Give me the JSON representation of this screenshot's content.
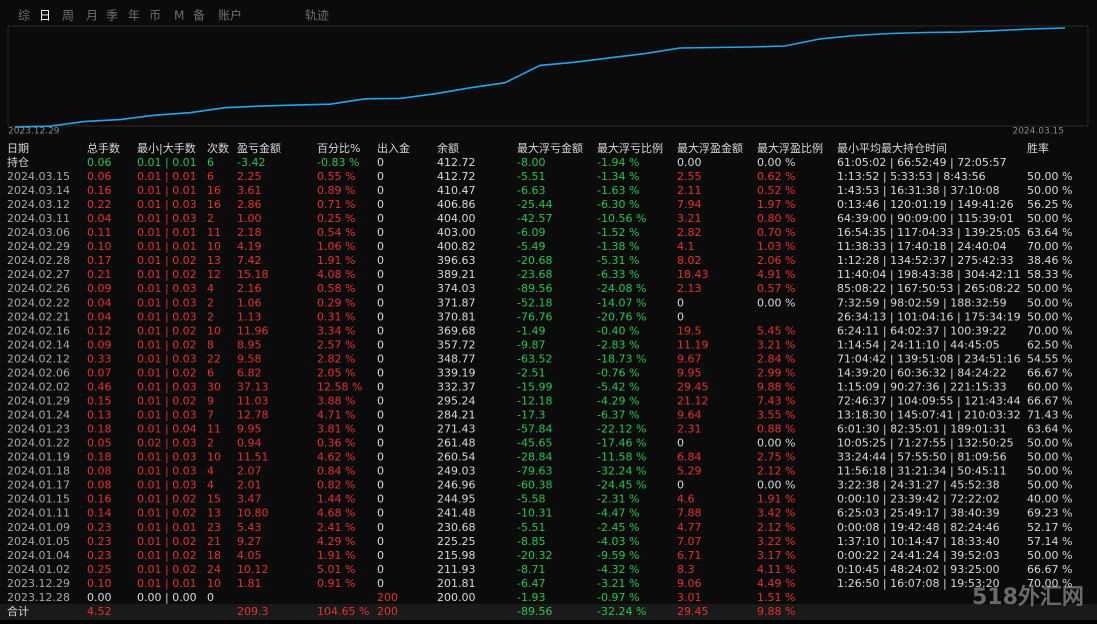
{
  "tabs": [
    "综",
    "日",
    "周",
    "月",
    "季",
    "年",
    "币",
    "M",
    "备",
    "账户",
    "轨迹"
  ],
  "selected_tab": 1,
  "chart": {
    "type": "line",
    "x_labels": [
      "2023.12.29",
      "2024.03.15"
    ],
    "color": "#1fa8f0"
  },
  "table": {
    "columns": [
      "日期",
      "总手数",
      "最小|大手数",
      "次数",
      "盈亏金额",
      "百分比%",
      "出入金",
      "余额",
      "最大浮亏金额",
      "最大浮亏比例",
      "最大浮盈金额",
      "最大浮盈比例",
      "最小平均最大持仓时间",
      "胜率"
    ],
    "holding": [
      "持仓",
      "0.06",
      "0.01 | 0.01",
      "6",
      "-3.42",
      "-0.83 %",
      "0",
      "412.72",
      "-8.00",
      "-1.94 %",
      "0.00",
      "0.00 %",
      "61:05:02 | 66:52:49 | 72:05:57",
      null
    ],
    "rows": [
      [
        "2024.03.15",
        "0.06",
        "0.01 | 0.01",
        "6",
        "2.25",
        "0.55 %",
        "0",
        "412.72",
        "-5.51",
        "-1.34 %",
        "2.55",
        "0.62 %",
        "1:13:52 | 5:33:53 | 8:43:56",
        "50.00 %"
      ],
      [
        "2024.03.14",
        "0.16",
        "0.01 | 0.01",
        "16",
        "3.61",
        "0.89 %",
        "0",
        "410.47",
        "-6.63",
        "-1.63 %",
        "2.11",
        "0.52 %",
        "1:43:53 | 16:31:38 | 37:10:08",
        "50.00 %"
      ],
      [
        "2024.03.12",
        "0.22",
        "0.01 | 0.03",
        "16",
        "2.86",
        "0.71 %",
        "0",
        "406.86",
        "-25.44",
        "-6.30 %",
        "7.94",
        "1.97 %",
        "0:13:46 | 120:01:19 | 149:41:26",
        "56.25 %"
      ],
      [
        "2024.03.11",
        "0.04",
        "0.01 | 0.03",
        "2",
        "1.00",
        "0.25 %",
        "0",
        "404.00",
        "-42.57",
        "-10.56 %",
        "3.21",
        "0.80 %",
        "64:39:00 | 90:09:00 | 115:39:01",
        "50.00 %"
      ],
      [
        "2024.03.06",
        "0.11",
        "0.01 | 0.01",
        "11",
        "2.18",
        "0.54 %",
        "0",
        "403.00",
        "-6.09",
        "-1.52 %",
        "2.82",
        "0.70 %",
        "16:54:35 | 117:04:33 | 139:25:05",
        "63.64 %"
      ],
      [
        "2024.02.29",
        "0.10",
        "0.01 | 0.01",
        "10",
        "4.19",
        "1.06 %",
        "0",
        "400.82",
        "-5.49",
        "-1.38 %",
        "4.1",
        "1.03 %",
        "11:38:33 | 17:40:18 | 24:40:04",
        "70.00 %"
      ],
      [
        "2024.02.28",
        "0.17",
        "0.01 | 0.02",
        "13",
        "7.42",
        "1.91 %",
        "0",
        "396.63",
        "-20.68",
        "-5.31 %",
        "8.02",
        "2.06 %",
        "1:12:28 | 134:52:37 | 275:42:33",
        "38.46 %"
      ],
      [
        "2024.02.27",
        "0.21",
        "0.01 | 0.02",
        "12",
        "15.18",
        "4.08 %",
        "0",
        "389.21",
        "-23.68",
        "-6.33 %",
        "18.43",
        "4.91 %",
        "11:40:04 | 198:43:38 | 304:42:11",
        "58.33 %"
      ],
      [
        "2024.02.26",
        "0.09",
        "0.01 | 0.03",
        "4",
        "2.16",
        "0.58 %",
        "0",
        "374.03",
        "-89.56",
        "-24.08 %",
        "2.13",
        "0.57 %",
        "85:08:22 | 167:50:53 | 265:08:22",
        "50.00 %"
      ],
      [
        "2024.02.22",
        "0.04",
        "0.01 | 0.03",
        "2",
        "1.06",
        "0.29 %",
        "0",
        "371.87",
        "-52.18",
        "-14.07 %",
        "0",
        "0.00 %",
        "7:32:59 | 98:02:59 | 188:32:59",
        "50.00 %"
      ],
      [
        "2024.02.21",
        "0.04",
        "0.01 | 0.03",
        "2",
        "1.13",
        "0.31 %",
        "0",
        "370.81",
        "-76.76",
        "-20.76 %",
        "0",
        null,
        "26:34:13 | 101:04:16 | 175:34:19",
        "50.00 %"
      ],
      [
        "2024.02.16",
        "0.12",
        "0.01 | 0.02",
        "10",
        "11.96",
        "3.34 %",
        "0",
        "369.68",
        "-1.49",
        "-0.40 %",
        "19.5",
        "5.45 %",
        "6:24:11 | 64:02:37 | 100:39:22",
        "70.00 %"
      ],
      [
        "2024.02.14",
        "0.09",
        "0.01 | 0.02",
        "8",
        "8.95",
        "2.57 %",
        "0",
        "357.72",
        "-9.87",
        "-2.83 %",
        "11.19",
        "3.21 %",
        "1:14:54 | 24:11:10 | 44:45:05",
        "62.50 %"
      ],
      [
        "2024.02.12",
        "0.33",
        "0.01 | 0.03",
        "22",
        "9.58",
        "2.82 %",
        "0",
        "348.77",
        "-63.52",
        "-18.73 %",
        "9.67",
        "2.84 %",
        "71:04:42 | 139:51:08 | 234:51:16",
        "54.55 %"
      ],
      [
        "2024.02.06",
        "0.07",
        "0.01 | 0.02",
        "6",
        "6.82",
        "2.05 %",
        "0",
        "339.19",
        "-2.51",
        "-0.76 %",
        "9.95",
        "2.99 %",
        "14:39:20 | 60:36:32 | 84:24:22",
        "66.67 %"
      ],
      [
        "2024.02.02",
        "0.46",
        "0.01 | 0.03",
        "30",
        "37.13",
        "12.58 %",
        "0",
        "332.37",
        "-15.99",
        "-5.42 %",
        "29.45",
        "9.88 %",
        "1:15:09 | 90:27:36 | 221:15:33",
        "60.00 %"
      ],
      [
        "2024.01.29",
        "0.15",
        "0.01 | 0.02",
        "9",
        "11.03",
        "3.88 %",
        "0",
        "295.24",
        "-12.18",
        "-4.29 %",
        "21.12",
        "7.43 %",
        "72:46:37 | 104:09:55 | 121:43:44",
        "66.67 %"
      ],
      [
        "2024.01.24",
        "0.13",
        "0.01 | 0.03",
        "7",
        "12.78",
        "4.71 %",
        "0",
        "284.21",
        "-17.3",
        "-6.37 %",
        "9.64",
        "3.55 %",
        "13:18:30 | 145:07:41 | 210:03:32",
        "71.43 %"
      ],
      [
        "2024.01.23",
        "0.18",
        "0.01 | 0.04",
        "11",
        "9.95",
        "3.81 %",
        "0",
        "271.43",
        "-57.84",
        "-22.12 %",
        "2.31",
        "0.88 %",
        "6:01:30 | 82:35:01 | 189:01:31",
        "63.64 %"
      ],
      [
        "2024.01.22",
        "0.05",
        "0.02 | 0.03",
        "2",
        "0.94",
        "0.36 %",
        "0",
        "261.48",
        "-45.65",
        "-17.46 %",
        "0",
        "0.00 %",
        "10:05:25 | 71:27:55 | 132:50:25",
        "50.00 %"
      ],
      [
        "2024.01.19",
        "0.18",
        "0.01 | 0.03",
        "10",
        "11.51",
        "4.62 %",
        "0",
        "260.54",
        "-28.84",
        "-11.58 %",
        "6.84",
        "2.75 %",
        "33:24:44 | 57:55:50 | 81:09:56",
        "50.00 %"
      ],
      [
        "2024.01.18",
        "0.08",
        "0.01 | 0.03",
        "4",
        "2.07",
        "0.84 %",
        "0",
        "249.03",
        "-79.63",
        "-32.24 %",
        "5.29",
        "2.12 %",
        "11:56:18 | 31:21:34 | 50:45:11",
        "50.00 %"
      ],
      [
        "2024.01.17",
        "0.08",
        "0.01 | 0.03",
        "4",
        "2.01",
        "0.82 %",
        "0",
        "246.96",
        "-60.38",
        "-24.45 %",
        "0",
        "0.00 %",
        "3:22:38 | 24:31:27 | 45:52:38",
        "50.00 %"
      ],
      [
        "2024.01.15",
        "0.16",
        "0.01 | 0.02",
        "15",
        "3.47",
        "1.44 %",
        "0",
        "244.95",
        "-5.58",
        "-2.31 %",
        "4.6",
        "1.91 %",
        "0:00:10 | 23:39:42 | 72:22:02",
        "40.00 %"
      ],
      [
        "2024.01.11",
        "0.14",
        "0.01 | 0.02",
        "13",
        "10.80",
        "4.68 %",
        "0",
        "241.48",
        "-10.31",
        "-4.47 %",
        "7.88",
        "3.42 %",
        "6:25:03 | 25:49:17 | 38:40:39",
        "69.23 %"
      ],
      [
        "2024.01.09",
        "0.23",
        "0.01 | 0.01",
        "23",
        "5.43",
        "2.41 %",
        "0",
        "230.68",
        "-5.51",
        "-2.45 %",
        "4.77",
        "2.12 %",
        "0:00:08 | 19:42:48 | 82:24:46",
        "52.17 %"
      ],
      [
        "2024.01.05",
        "0.23",
        "0.01 | 0.02",
        "21",
        "9.27",
        "4.29 %",
        "0",
        "225.25",
        "-8.85",
        "-4.03 %",
        "7.07",
        "3.22 %",
        "1:37:10 | 10:14:47 | 18:33:40",
        "57.14 %"
      ],
      [
        "2024.01.04",
        "0.23",
        "0.01 | 0.02",
        "18",
        "4.05",
        "1.91 %",
        "0",
        "215.98",
        "-20.32",
        "-9.59 %",
        "6.71",
        "3.17 %",
        "0:00:22 | 24:41:24 | 39:52:03",
        "50.00 %"
      ],
      [
        "2024.01.02",
        "0.25",
        "0.01 | 0.02",
        "24",
        "10.12",
        "5.01 %",
        "0",
        "211.93",
        "-8.71",
        "-4.32 %",
        "8.3",
        "4.11 %",
        "0:10:45 | 48:24:02 | 93:25:00",
        "66.67 %"
      ],
      [
        "2023.12.29",
        "0.10",
        "0.01 | 0.01",
        "10",
        "1.81",
        "0.91 %",
        "0",
        "201.81",
        "-6.47",
        "-3.21 %",
        "9.06",
        "4.49 %",
        "1:26:50 | 16:07:08 | 19:53:20",
        "70.00 %"
      ],
      [
        "2023.12.28",
        "0.00",
        "0.00 | 0.00",
        "0",
        null,
        null,
        "200",
        "200.00",
        "-1.93",
        "-0.97 %",
        "3.01",
        "1.51 %",
        null,
        null
      ]
    ],
    "total": [
      "合计",
      "4.52",
      null,
      null,
      "209.3",
      "104.65 %",
      "200",
      null,
      "-89.56",
      "-32.24 %",
      "29.45",
      "9.88 %",
      null,
      null
    ]
  },
  "watermark": "518外汇网"
}
